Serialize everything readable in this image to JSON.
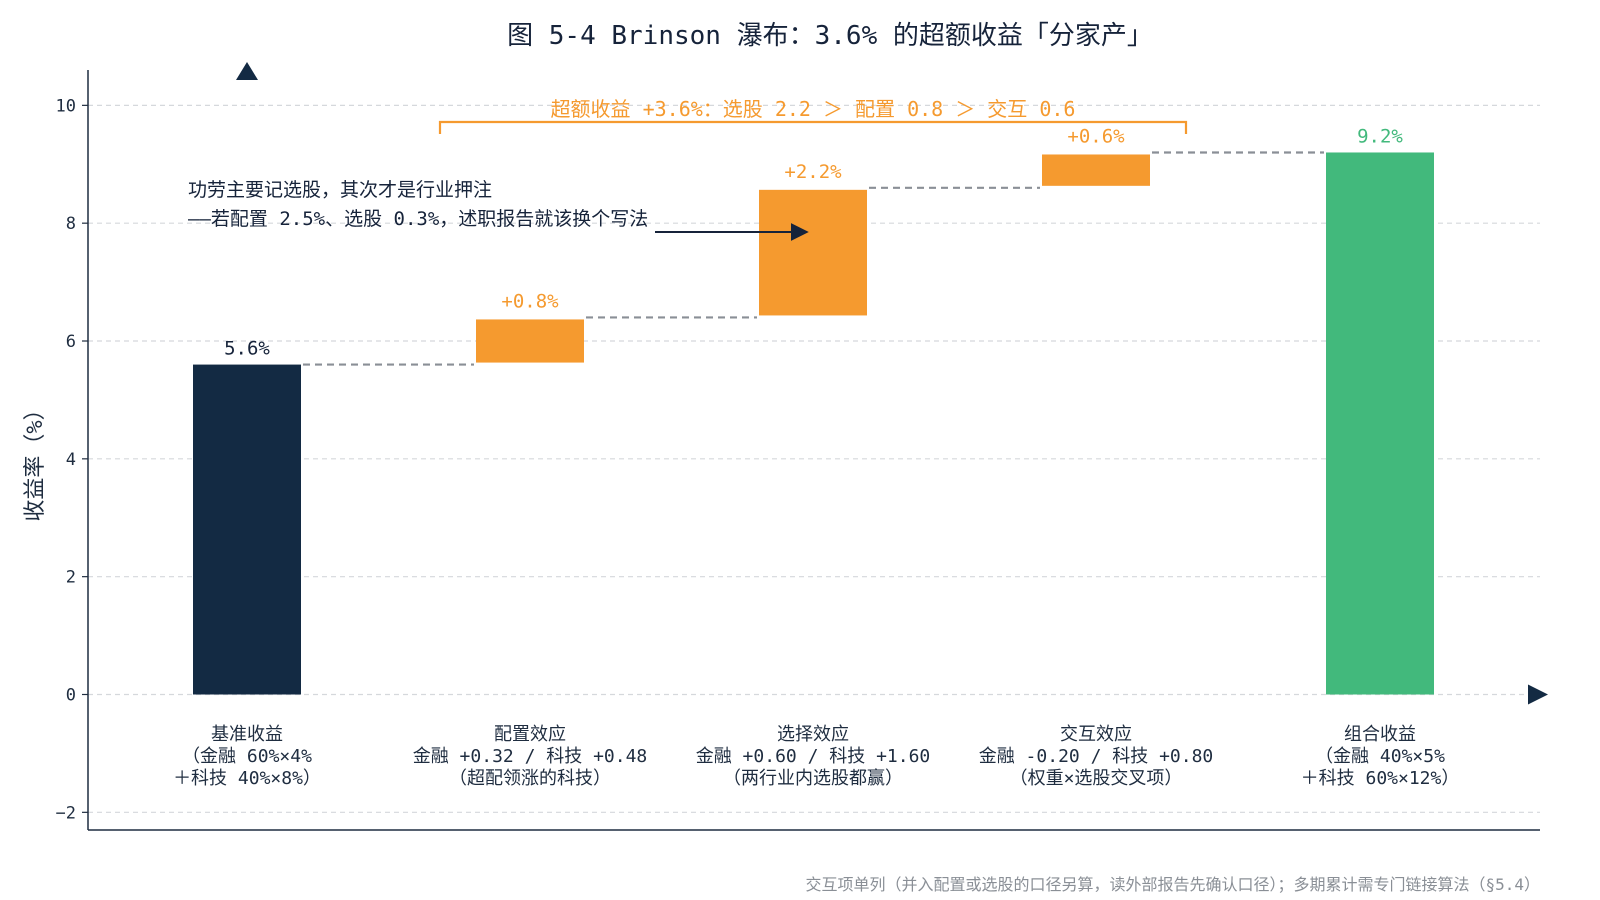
{
  "chart_data": {
    "type": "bar",
    "subtype": "waterfall",
    "title": "图 5-4 Brinson 瀑布：3.6% 的超额收益「分家产」",
    "ylabel": "收益率（%）",
    "xlabel": "",
    "ylim": [
      -2.3,
      10.6
    ],
    "yticks": [
      -2,
      0,
      2,
      4,
      6,
      8,
      10
    ],
    "grid": true,
    "bars": [
      {
        "kind": "total",
        "start": 0,
        "value": 5.6,
        "label": "5.6%",
        "category_lines": [
          "基准收益",
          "（金融 60%×4%",
          "＋科技 40%×8%）"
        ],
        "color": "#132a43"
      },
      {
        "kind": "delta",
        "start": 5.6,
        "value": 0.8,
        "label": "+0.8%",
        "category_lines": [
          "配置效应",
          "金融 +0.32 / 科技 +0.48",
          "（超配领涨的科技）"
        ],
        "color": "#f59a2f"
      },
      {
        "kind": "delta",
        "start": 6.4,
        "value": 2.2,
        "label": "+2.2%",
        "category_lines": [
          "选择效应",
          "金融 +0.60 / 科技 +1.60",
          "（两行业内选股都赢）"
        ],
        "color": "#f59a2f"
      },
      {
        "kind": "delta",
        "start": 8.6,
        "value": 0.6,
        "label": "+0.6%",
        "category_lines": [
          "交互效应",
          "金融 -0.20 / 科技 +0.80",
          "（权重×选股交叉项）"
        ],
        "color": "#f59a2f"
      },
      {
        "kind": "total",
        "start": 0,
        "value": 9.2,
        "label": "9.2%",
        "category_lines": [
          "组合收益",
          "（金融 40%×5%",
          "＋科技 60%×12%）"
        ],
        "color": "#42b97c"
      }
    ],
    "summary_bracket": {
      "text": "超额收益 +3.6%：选股 2.2 ＞ 配置 0.8 ＞ 交互 0.6",
      "from_bar": 1,
      "to_bar": 3,
      "color": "#f59a2f"
    },
    "annotation": {
      "lines": [
        "功劳主要记选股，其次才是行业押注",
        "——若配置 2.5%、选股 0.3%，述职报告就该换个写法"
      ],
      "arrow_to_bar": 2
    },
    "footnote": "交互项单列（并入配置或选股的口径另算，读外部报告先确认口径）；多期累计需专门链接算法（§5.4）"
  }
}
